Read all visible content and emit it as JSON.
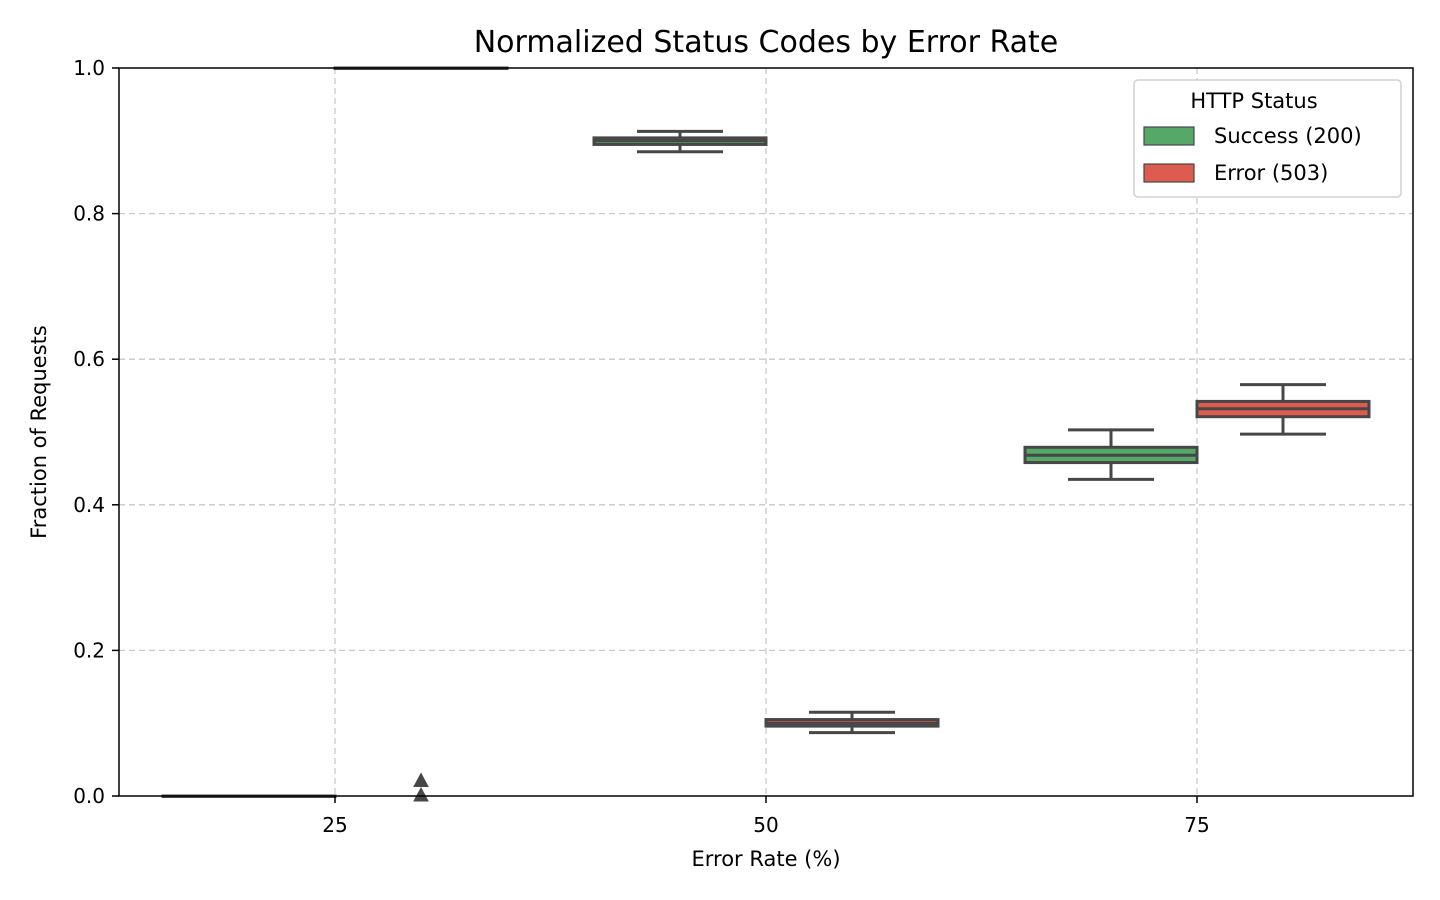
{
  "chart_data": {
    "type": "box",
    "title": "Normalized Status Codes by Error Rate",
    "xlabel": "Error Rate (%)",
    "ylabel": "Fraction of Requests",
    "categories": [
      "25",
      "50",
      "75"
    ],
    "ylim": [
      0,
      1
    ],
    "yticks": [
      "0.0",
      "0.2",
      "0.4",
      "0.6",
      "0.8",
      "1.0"
    ],
    "grid": true,
    "legend": {
      "title": "HTTP Status",
      "placement": "top-right"
    },
    "series": [
      {
        "name": "Success (200)",
        "color": "#55a868",
        "boxes": [
          {
            "category": "25",
            "whisker_low": 0.0,
            "q1": 0.0,
            "median": 0.0,
            "q3": 0.0,
            "whisker_high": 0.0,
            "outliers": []
          },
          {
            "category": "50",
            "whisker_low": 0.885,
            "q1": 0.895,
            "median": 0.9,
            "q3": 0.904,
            "whisker_high": 0.913,
            "outliers": []
          },
          {
            "category": "75",
            "whisker_low": 0.435,
            "q1": 0.458,
            "median": 0.468,
            "q3": 0.479,
            "whisker_high": 0.503,
            "outliers": []
          }
        ]
      },
      {
        "name": "Error (503)",
        "color": "#dd5b4f",
        "boxes": [
          {
            "category": "25",
            "whisker_low": 1.0,
            "q1": 1.0,
            "median": 1.0,
            "q3": 1.0,
            "whisker_high": 1.0,
            "outliers": [
              0.0,
              0.02
            ]
          },
          {
            "category": "50",
            "whisker_low": 0.087,
            "q1": 0.096,
            "median": 0.1,
            "q3": 0.105,
            "whisker_high": 0.115,
            "outliers": []
          },
          {
            "category": "75",
            "whisker_low": 0.497,
            "q1": 0.521,
            "median": 0.532,
            "q3": 0.542,
            "whisker_high": 0.565,
            "outliers": []
          }
        ]
      }
    ]
  }
}
